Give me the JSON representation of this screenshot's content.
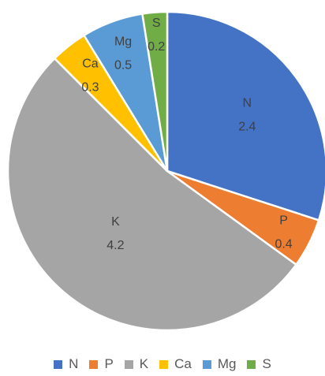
{
  "chart_data": {
    "type": "pie",
    "categories": [
      "N",
      "P",
      "K",
      "Ca",
      "Mg",
      "S"
    ],
    "values": [
      2.4,
      0.4,
      4.2,
      0.3,
      0.5,
      0.2
    ],
    "value_labels": [
      "2.4",
      "0.4",
      "4.2",
      "0.3",
      "0.5",
      "0.2"
    ],
    "colors": [
      "#4472C4",
      "#ED7D31",
      "#A5A5A5",
      "#FFC000",
      "#5B9BD5",
      "#70AD47"
    ],
    "legend_position": "bottom",
    "start_angle": "12 o'clock, clockwise"
  }
}
